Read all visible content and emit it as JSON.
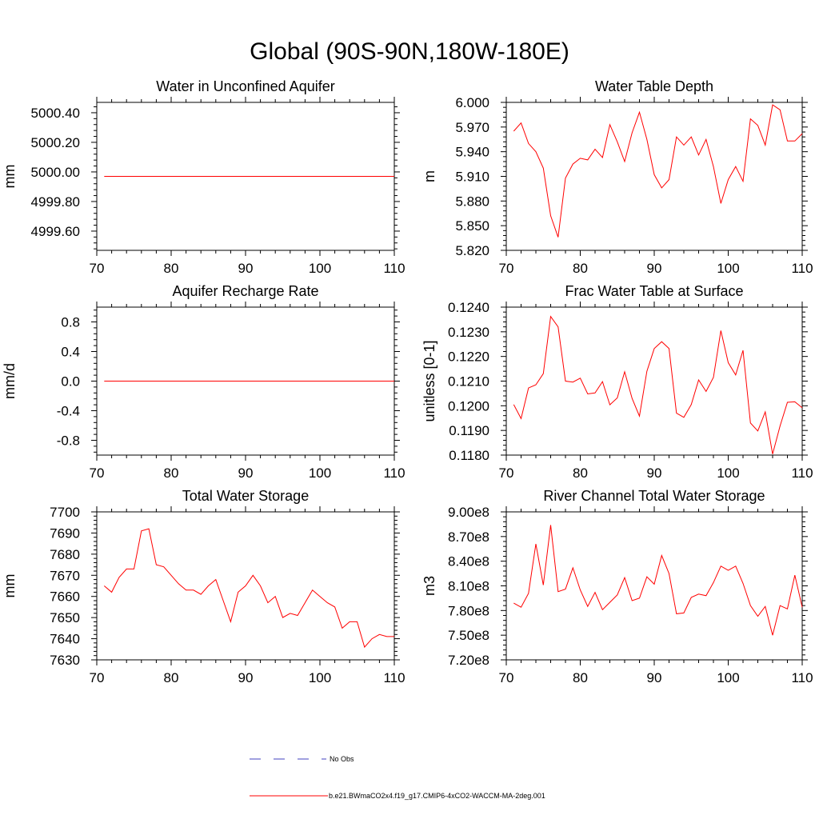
{
  "title": "Global (90S-90N,180W-180E)",
  "colors": {
    "model_line": "#ff0000",
    "obs_line": "#4040c0",
    "axis": "#000000"
  },
  "legend": [
    {
      "label": "No Obs",
      "style": "dashed",
      "color": "#4040c0"
    },
    {
      "label": "b.e21.BWmaCO2x4.f19_g17.CMIP6-4xCO2-WACCM-MA-2deg.001",
      "style": "solid",
      "color": "#ff0000"
    }
  ],
  "chart_data": [
    {
      "type": "line",
      "title": "Water in Unconfined Aquifer",
      "ylabel": "mm",
      "xlim": [
        70,
        110
      ],
      "ylim": [
        4999.47,
        5000.47
      ],
      "xticks": [
        70,
        80,
        90,
        100,
        110
      ],
      "xtick_labels": [
        "70",
        "80",
        "90",
        "100",
        "110"
      ],
      "yticks": [
        4999.6,
        4999.8,
        5000.0,
        5000.2,
        5000.4
      ],
      "ytick_labels": [
        "4999.60",
        "4999.80",
        "5000.00",
        "5000.20",
        "5000.40"
      ],
      "x": [
        71,
        110
      ],
      "values": [
        4999.97,
        4999.97
      ]
    },
    {
      "type": "line",
      "title": "Water Table Depth",
      "ylabel": "m",
      "xlim": [
        70,
        110
      ],
      "ylim": [
        5.82,
        6.0
      ],
      "xticks": [
        70,
        80,
        90,
        100,
        110
      ],
      "xtick_labels": [
        "70",
        "80",
        "90",
        "100",
        "110"
      ],
      "yticks": [
        5.82,
        5.85,
        5.88,
        5.91,
        5.94,
        5.97,
        6.0
      ],
      "ytick_labels": [
        "5.820",
        "5.850",
        "5.880",
        "5.910",
        "5.940",
        "5.970",
        "6.000"
      ],
      "x": [
        71,
        72,
        73,
        74,
        75,
        76,
        77,
        78,
        79,
        80,
        81,
        82,
        83,
        84,
        85,
        86,
        87,
        88,
        89,
        90,
        91,
        92,
        93,
        94,
        95,
        96,
        97,
        98,
        99,
        100,
        101,
        102,
        103,
        104,
        105,
        106,
        107,
        108,
        109,
        110
      ],
      "values": [
        5.965,
        5.975,
        5.95,
        5.94,
        5.92,
        5.862,
        5.836,
        5.908,
        5.925,
        5.932,
        5.93,
        5.943,
        5.933,
        5.973,
        5.952,
        5.928,
        5.963,
        5.988,
        5.955,
        5.912,
        5.896,
        5.906,
        5.958,
        5.948,
        5.958,
        5.936,
        5.955,
        5.922,
        5.877,
        5.906,
        5.922,
        5.904,
        5.98,
        5.972,
        5.948,
        5.997,
        5.991,
        5.953,
        5.953,
        5.962
      ]
    },
    {
      "type": "line",
      "title": "Aquifer Recharge Rate",
      "ylabel": "mm/d",
      "xlim": [
        70,
        110
      ],
      "ylim": [
        -1.0,
        1.0
      ],
      "xticks": [
        70,
        80,
        90,
        100,
        110
      ],
      "xtick_labels": [
        "70",
        "80",
        "90",
        "100",
        "110"
      ],
      "yticks": [
        -0.8,
        -0.4,
        0.0,
        0.4,
        0.8
      ],
      "ytick_labels": [
        "-0.8",
        "-0.4",
        "0.0",
        "0.4",
        "0.8"
      ],
      "x": [
        71,
        110
      ],
      "values": [
        0.0,
        0.0
      ]
    },
    {
      "type": "line",
      "title": "Frac Water Table at Surface",
      "ylabel": "unitless [0-1]",
      "xlim": [
        70,
        110
      ],
      "ylim": [
        0.118,
        0.124
      ],
      "xticks": [
        70,
        80,
        90,
        100,
        110
      ],
      "xtick_labels": [
        "70",
        "80",
        "90",
        "100",
        "110"
      ],
      "yticks": [
        0.118,
        0.119,
        0.12,
        0.121,
        0.122,
        0.123,
        0.124
      ],
      "ytick_labels": [
        "0.1180",
        "0.1190",
        "0.1200",
        "0.1210",
        "0.1220",
        "0.1230",
        "0.1240"
      ],
      "x": [
        71,
        72,
        73,
        74,
        75,
        76,
        77,
        78,
        79,
        80,
        81,
        82,
        83,
        84,
        85,
        86,
        87,
        88,
        89,
        90,
        91,
        92,
        93,
        94,
        95,
        96,
        97,
        98,
        99,
        100,
        101,
        102,
        103,
        104,
        105,
        106,
        107,
        108,
        109,
        110
      ],
      "values": [
        0.12005,
        0.11948,
        0.12072,
        0.12085,
        0.1213,
        0.12362,
        0.1232,
        0.121,
        0.12096,
        0.12112,
        0.12048,
        0.12052,
        0.12098,
        0.12004,
        0.12032,
        0.12138,
        0.1203,
        0.11958,
        0.1214,
        0.12232,
        0.1226,
        0.12232,
        0.1197,
        0.11953,
        0.12005,
        0.12105,
        0.12058,
        0.12115,
        0.12305,
        0.12175,
        0.12125,
        0.12225,
        0.1193,
        0.11898,
        0.11975,
        0.11804,
        0.11918,
        0.12014,
        0.12016,
        0.11992
      ]
    },
    {
      "type": "line",
      "title": "Total Water Storage",
      "ylabel": "mm",
      "xlim": [
        70,
        110
      ],
      "ylim": [
        7630,
        7700
      ],
      "xticks": [
        70,
        80,
        90,
        100,
        110
      ],
      "xtick_labels": [
        "70",
        "80",
        "90",
        "100",
        "110"
      ],
      "yticks": [
        7630,
        7640,
        7650,
        7660,
        7670,
        7680,
        7690,
        7700
      ],
      "ytick_labels": [
        "7630",
        "7640",
        "7650",
        "7660",
        "7670",
        "7680",
        "7690",
        "7700"
      ],
      "x": [
        71,
        72,
        73,
        74,
        75,
        76,
        77,
        78,
        79,
        80,
        81,
        82,
        83,
        84,
        85,
        86,
        87,
        88,
        89,
        90,
        91,
        92,
        93,
        94,
        95,
        96,
        97,
        98,
        99,
        100,
        101,
        102,
        103,
        104,
        105,
        106,
        107,
        108,
        109,
        110
      ],
      "values": [
        7665,
        7662,
        7669,
        7673,
        7673,
        7691,
        7692,
        7675,
        7674,
        7670,
        7666,
        7663,
        7663,
        7661,
        7665,
        7668,
        7658,
        7648,
        7662,
        7665,
        7670,
        7665,
        7657,
        7660,
        7650,
        7652,
        7651,
        7657,
        7663,
        7660,
        7657,
        7655,
        7645,
        7648,
        7648,
        7636,
        7640,
        7642,
        7641,
        7641
      ]
    },
    {
      "type": "line",
      "title": "River Channel Total Water Storage",
      "ylabel": "m3",
      "xlim": [
        70,
        110
      ],
      "ylim": [
        720000000,
        900000000
      ],
      "xticks": [
        70,
        80,
        90,
        100,
        110
      ],
      "xtick_labels": [
        "70",
        "80",
        "90",
        "100",
        "110"
      ],
      "yticks": [
        720000000,
        750000000,
        780000000,
        810000000,
        840000000,
        870000000,
        900000000
      ],
      "ytick_labels": [
        "7.20e8",
        "7.50e8",
        "7.80e8",
        "8.10e8",
        "8.40e8",
        "8.70e8",
        "9.00e8"
      ],
      "x": [
        71,
        72,
        73,
        74,
        75,
        76,
        77,
        78,
        79,
        80,
        81,
        82,
        83,
        84,
        85,
        86,
        87,
        88,
        89,
        90,
        91,
        92,
        93,
        94,
        95,
        96,
        97,
        98,
        99,
        100,
        101,
        102,
        103,
        104,
        105,
        106,
        107,
        108,
        109,
        110
      ],
      "values": [
        789000000,
        784000000,
        801000000,
        861000000,
        811000000,
        884000000,
        803000000,
        806000000,
        832000000,
        805000000,
        785000000,
        802000000,
        781000000,
        790000000,
        799000000,
        820000000,
        792000000,
        795000000,
        821000000,
        812000000,
        847000000,
        825000000,
        776000000,
        777000000,
        796000000,
        800000000,
        798000000,
        814000000,
        834000000,
        829000000,
        834000000,
        813000000,
        786000000,
        773000000,
        785000000,
        750000000,
        786000000,
        782000000,
        823000000,
        784000000
      ]
    }
  ]
}
